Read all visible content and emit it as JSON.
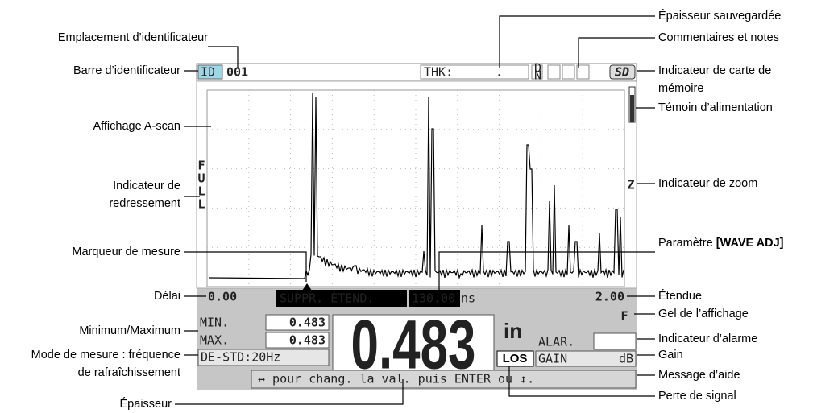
{
  "screen": {
    "id_label": "ID",
    "id_value": "001",
    "thk_label": "THK:",
    "thk_value": ".",
    "dn": [
      "D",
      "N"
    ],
    "sd": "SD",
    "full": [
      "F",
      "U",
      "L",
      "L"
    ],
    "zoom": "Z",
    "delay": "0.00",
    "suppr": "SUPPR. ÉTEND.",
    "wave_adj_value": "130.00",
    "wave_adj_unit": "ns",
    "range": "2.00",
    "freeze": "F",
    "min_label": "MIN.",
    "min_value": "0.483",
    "max_label": "MAX.",
    "max_value": "0.483",
    "mode": "DE-STD:20Hz",
    "thickness": "0.483",
    "unit": "in",
    "alarm_label": "ALAR.",
    "los": "LOS",
    "gain_label": "GAIN",
    "gain_unit": "dB",
    "help": "↔ pour chang. la val. puis ENTER ou ↕."
  },
  "callouts": {
    "left": [
      {
        "text": [
          "Emplacement d’identificateur"
        ]
      },
      {
        "text": [
          "Barre d’identificateur"
        ]
      },
      {
        "text": [
          "Affichage A-scan"
        ]
      },
      {
        "text": [
          "Indicateur de",
          "redressement"
        ]
      },
      {
        "text": [
          "Marqueur de mesure"
        ]
      },
      {
        "text": [
          "Délai"
        ]
      },
      {
        "text": [
          "Minimum/Maximum"
        ]
      },
      {
        "text": [
          "Mode de mesure : fréquence",
          "de rafraîchissement"
        ]
      },
      {
        "text": [
          "Épaisseur"
        ]
      }
    ],
    "right": [
      {
        "text": [
          "Épaisseur sauvegardée"
        ]
      },
      {
        "text": [
          "Commentaires et notes"
        ]
      },
      {
        "text": [
          "Indicateur de carte de",
          "mémoire"
        ]
      },
      {
        "text": [
          "Témoin d’alimentation"
        ]
      },
      {
        "text": [
          "Indicateur de zoom"
        ]
      },
      {
        "text": [
          "Paramètre"
        ],
        "bold": "[WAVE ADJ]"
      },
      {
        "text": [
          "Étendue"
        ]
      },
      {
        "text": [
          "Gel de l’affichage"
        ]
      },
      {
        "text": [
          "Indicateur d’alarme"
        ]
      },
      {
        "text": [
          "Gain"
        ]
      },
      {
        "text": [
          "Message d’aide"
        ]
      },
      {
        "text": [
          "Perte de signal"
        ]
      }
    ]
  }
}
